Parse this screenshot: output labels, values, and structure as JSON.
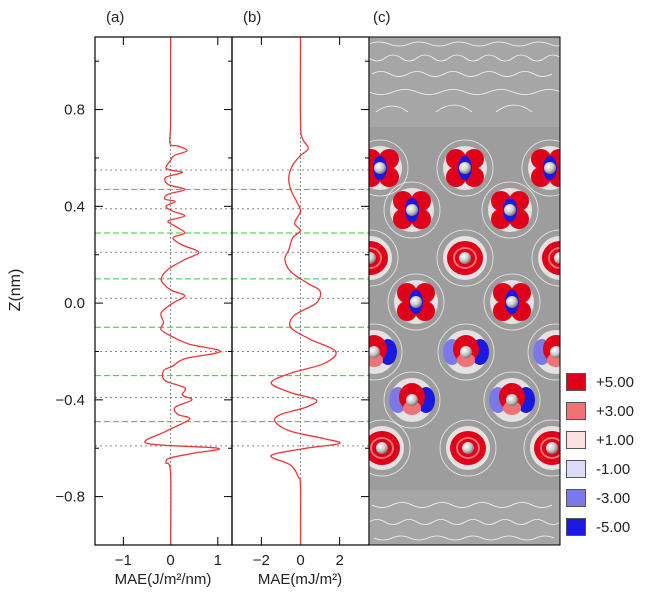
{
  "chart_data": [
    {
      "panel_label": "(a)",
      "type": "line",
      "xlabel": "MAE(J/m²/nm)",
      "ylabel": "Z(nm)",
      "xlim": [
        -1.6,
        1.3
      ],
      "ylim": [
        -1.0,
        1.1
      ],
      "xticks": [
        "−1",
        "0",
        "1"
      ],
      "xtick_values": [
        -1,
        0,
        1
      ],
      "yticks": [
        "0.8",
        "0.4",
        "0.0",
        "−0.4",
        "−0.8"
      ],
      "ytick_values": [
        0.8,
        0.4,
        0.0,
        -0.4,
        -0.8
      ],
      "line_color": "#e8383a",
      "points": [
        [
          0.0,
          1.1
        ],
        [
          0.0,
          0.75
        ],
        [
          -0.01,
          0.66
        ],
        [
          0.15,
          0.65
        ],
        [
          0.35,
          0.63
        ],
        [
          0.08,
          0.61
        ],
        [
          0.0,
          0.59
        ],
        [
          -0.1,
          0.56
        ],
        [
          0.0,
          0.55
        ],
        [
          0.25,
          0.54
        ],
        [
          -0.1,
          0.52
        ],
        [
          -0.05,
          0.49
        ],
        [
          0.3,
          0.47
        ],
        [
          -0.05,
          0.45
        ],
        [
          -0.12,
          0.43
        ],
        [
          0.1,
          0.42
        ],
        [
          -0.1,
          0.4
        ],
        [
          0.05,
          0.38
        ],
        [
          0.3,
          0.36
        ],
        [
          -0.05,
          0.34
        ],
        [
          0.08,
          0.32
        ],
        [
          0.3,
          0.29
        ],
        [
          0.05,
          0.27
        ],
        [
          0.25,
          0.24
        ],
        [
          0.6,
          0.21
        ],
        [
          0.3,
          0.18
        ],
        [
          -0.05,
          0.14
        ],
        [
          -0.2,
          0.1
        ],
        [
          -0.1,
          0.07
        ],
        [
          0.05,
          0.05
        ],
        [
          0.3,
          0.03
        ],
        [
          0.05,
          0.0
        ],
        [
          -0.2,
          -0.04
        ],
        [
          -0.15,
          -0.08
        ],
        [
          -0.2,
          -0.11
        ],
        [
          0.05,
          -0.14
        ],
        [
          0.4,
          -0.17
        ],
        [
          1.05,
          -0.2
        ],
        [
          0.3,
          -0.23
        ],
        [
          0.05,
          -0.26
        ],
        [
          -0.15,
          -0.28
        ],
        [
          -0.12,
          -0.32
        ],
        [
          0.3,
          -0.35
        ],
        [
          0.25,
          -0.38
        ],
        [
          0.45,
          -0.4
        ],
        [
          0.1,
          -0.43
        ],
        [
          0.15,
          -0.46
        ],
        [
          0.4,
          -0.48
        ],
        [
          -0.1,
          -0.53
        ],
        [
          -0.5,
          -0.58
        ],
        [
          1.0,
          -0.6
        ],
        [
          0.5,
          -0.62
        ],
        [
          0.0,
          -0.64
        ],
        [
          -0.1,
          -0.66
        ],
        [
          0.0,
          -0.7
        ],
        [
          0.0,
          -1.0
        ]
      ],
      "reference_lines": {
        "vertical_x": 0,
        "gray_y": [
          0.55,
          0.39,
          0.21,
          0.02,
          -0.2,
          -0.39,
          -0.59
        ],
        "green_y": [
          0.47,
          0.29,
          0.1,
          -0.1,
          -0.3,
          -0.49
        ],
        "gray_color": "#888888",
        "green_color": "#33cc33"
      }
    },
    {
      "panel_label": "(b)",
      "type": "line",
      "xlabel": "MAE(mJ/m²)",
      "ylabel": "",
      "xlim": [
        -3.5,
        3.5
      ],
      "ylim": [
        -1.0,
        1.1
      ],
      "xticks": [
        "−2",
        "0",
        "2"
      ],
      "xtick_values": [
        -2,
        0,
        2
      ],
      "line_color": "#e8383a",
      "points": [
        [
          0.0,
          1.1
        ],
        [
          0.0,
          0.75
        ],
        [
          0.1,
          0.68
        ],
        [
          0.4,
          0.64
        ],
        [
          0.0,
          0.61
        ],
        [
          -0.4,
          0.57
        ],
        [
          -0.6,
          0.52
        ],
        [
          -0.5,
          0.47
        ],
        [
          -0.2,
          0.42
        ],
        [
          0.0,
          0.38
        ],
        [
          -0.3,
          0.33
        ],
        [
          0.0,
          0.3
        ],
        [
          -0.4,
          0.27
        ],
        [
          -0.6,
          0.22
        ],
        [
          -0.8,
          0.18
        ],
        [
          -0.5,
          0.13
        ],
        [
          0.4,
          0.08
        ],
        [
          1.0,
          0.05
        ],
        [
          0.8,
          0.0
        ],
        [
          -0.3,
          -0.05
        ],
        [
          -0.5,
          -0.1
        ],
        [
          0.5,
          -0.15
        ],
        [
          1.8,
          -0.2
        ],
        [
          1.2,
          -0.25
        ],
        [
          -0.5,
          -0.29
        ],
        [
          -1.5,
          -0.33
        ],
        [
          -0.5,
          -0.37
        ],
        [
          0.8,
          -0.4
        ],
        [
          0.3,
          -0.43
        ],
        [
          -1.0,
          -0.46
        ],
        [
          -1.3,
          -0.49
        ],
        [
          -0.5,
          -0.53
        ],
        [
          1.2,
          -0.56
        ],
        [
          2.0,
          -0.58
        ],
        [
          0.3,
          -0.6
        ],
        [
          -1.5,
          -0.63
        ],
        [
          -0.5,
          -0.67
        ],
        [
          -0.1,
          -0.72
        ],
        [
          0.0,
          -0.76
        ],
        [
          0.0,
          -1.0
        ]
      ]
    }
  ],
  "panel_c": {
    "panel_label": "(c)",
    "legend": [
      {
        "label": "+5.00",
        "color": "#e0001a"
      },
      {
        "label": "+3.00",
        "color": "#ef7276"
      },
      {
        "label": "+1.00",
        "color": "#fde1e1"
      },
      {
        "label": "-1.00",
        "color": "#dcdcf8"
      },
      {
        "label": "-3.00",
        "color": "#7b79ea"
      },
      {
        "label": "-5.00",
        "color": "#1a19e0"
      }
    ]
  }
}
